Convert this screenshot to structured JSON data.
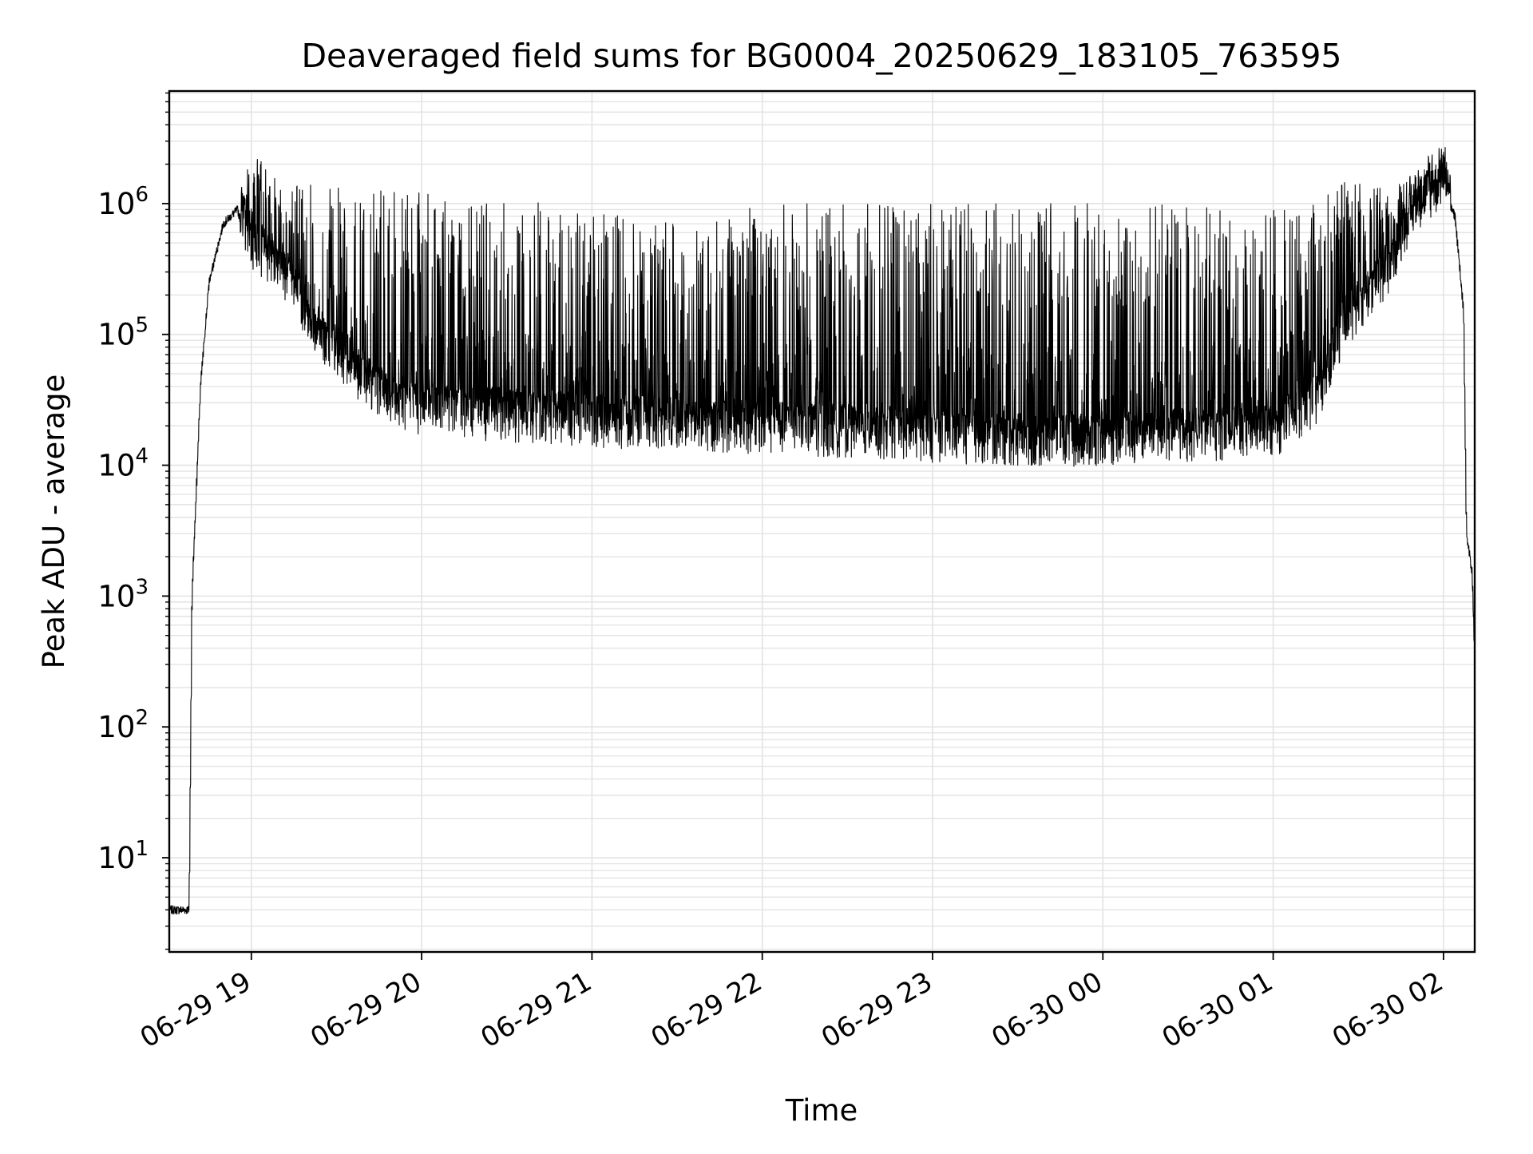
{
  "chart_data": {
    "type": "line",
    "title": "Deaveraged field sums for BG0004_20250629_183105_763595",
    "xlabel": "Time",
    "ylabel": "Peak ADU - average",
    "yscale": "log",
    "ylim_exponents": [
      0.28,
      6.86
    ],
    "xlim": [
      "2025-06-29 18:31:05",
      "2025-06-30 02:11:00"
    ],
    "x_ticks": [
      "06-29 19",
      "06-29 20",
      "06-29 21",
      "06-29 22",
      "06-29 23",
      "06-30 00",
      "06-30 01",
      "06-30 02"
    ],
    "y_tick_exponents": [
      1,
      2,
      3,
      4,
      5,
      6
    ],
    "y_tick_base": "10",
    "grid": true,
    "legend": "none",
    "line_color": "#000000",
    "grid_color": "#e3e3e3",
    "series": [
      {
        "envelope_points": [
          {
            "x": "2025-06-29 18:31",
            "baseline": 4,
            "peak": 4
          },
          {
            "x": "2025-06-29 18:38",
            "baseline": 4,
            "peak": 4
          },
          {
            "x": "2025-06-29 18:39",
            "baseline": 1000,
            "peak": 1000
          },
          {
            "x": "2025-06-29 18:42",
            "baseline": 40000,
            "peak": 40000
          },
          {
            "x": "2025-06-29 18:45",
            "baseline": 250000,
            "peak": 250000
          },
          {
            "x": "2025-06-29 18:50",
            "baseline": 700000,
            "peak": 700000
          },
          {
            "x": "2025-06-29 18:55",
            "baseline": 900000,
            "peak": 1000000
          },
          {
            "x": "2025-06-29 19:00",
            "baseline": 400000,
            "peak": 2500000
          },
          {
            "x": "2025-06-29 19:10",
            "baseline": 300000,
            "peak": 1500000
          },
          {
            "x": "2025-06-29 19:20",
            "baseline": 100000,
            "peak": 1600000
          },
          {
            "x": "2025-06-29 19:30",
            "baseline": 60000,
            "peak": 1500000
          },
          {
            "x": "2025-06-29 19:45",
            "baseline": 30000,
            "peak": 1300000
          },
          {
            "x": "2025-06-29 20:00",
            "baseline": 22000,
            "peak": 1200000
          },
          {
            "x": "2025-06-29 20:30",
            "baseline": 20000,
            "peak": 1100000
          },
          {
            "x": "2025-06-29 21:00",
            "baseline": 18000,
            "peak": 900000
          },
          {
            "x": "2025-06-29 21:30",
            "baseline": 17000,
            "peak": 700000
          },
          {
            "x": "2025-06-29 22:00",
            "baseline": 16000,
            "peak": 1000000
          },
          {
            "x": "2025-06-29 22:30",
            "baseline": 15000,
            "peak": 1000000
          },
          {
            "x": "2025-06-29 23:00",
            "baseline": 14000,
            "peak": 1000000
          },
          {
            "x": "2025-06-29 23:30",
            "baseline": 13000,
            "peak": 1000000
          },
          {
            "x": "2025-06-30 00:00",
            "baseline": 13000,
            "peak": 1000000
          },
          {
            "x": "2025-06-30 00:30",
            "baseline": 14000,
            "peak": 1000000
          },
          {
            "x": "2025-06-30 01:00",
            "baseline": 15000,
            "peak": 1000000
          },
          {
            "x": "2025-06-30 01:15",
            "baseline": 25000,
            "peak": 1000000
          },
          {
            "x": "2025-06-30 01:25",
            "baseline": 100000,
            "peak": 1500000
          },
          {
            "x": "2025-06-30 01:40",
            "baseline": 250000,
            "peak": 1300000
          },
          {
            "x": "2025-06-30 01:50",
            "baseline": 800000,
            "peak": 1700000
          },
          {
            "x": "2025-06-30 02:00",
            "baseline": 1200000,
            "peak": 3500000
          },
          {
            "x": "2025-06-30 02:04",
            "baseline": 800000,
            "peak": 800000
          },
          {
            "x": "2025-06-30 02:07",
            "baseline": 150000,
            "peak": 150000
          },
          {
            "x": "2025-06-30 02:08",
            "baseline": 3000,
            "peak": 3000
          },
          {
            "x": "2025-06-30 02:10",
            "baseline": 1500,
            "peak": 1500
          },
          {
            "x": "2025-06-30 02:11",
            "baseline": 300,
            "peak": 300
          }
        ]
      }
    ]
  }
}
